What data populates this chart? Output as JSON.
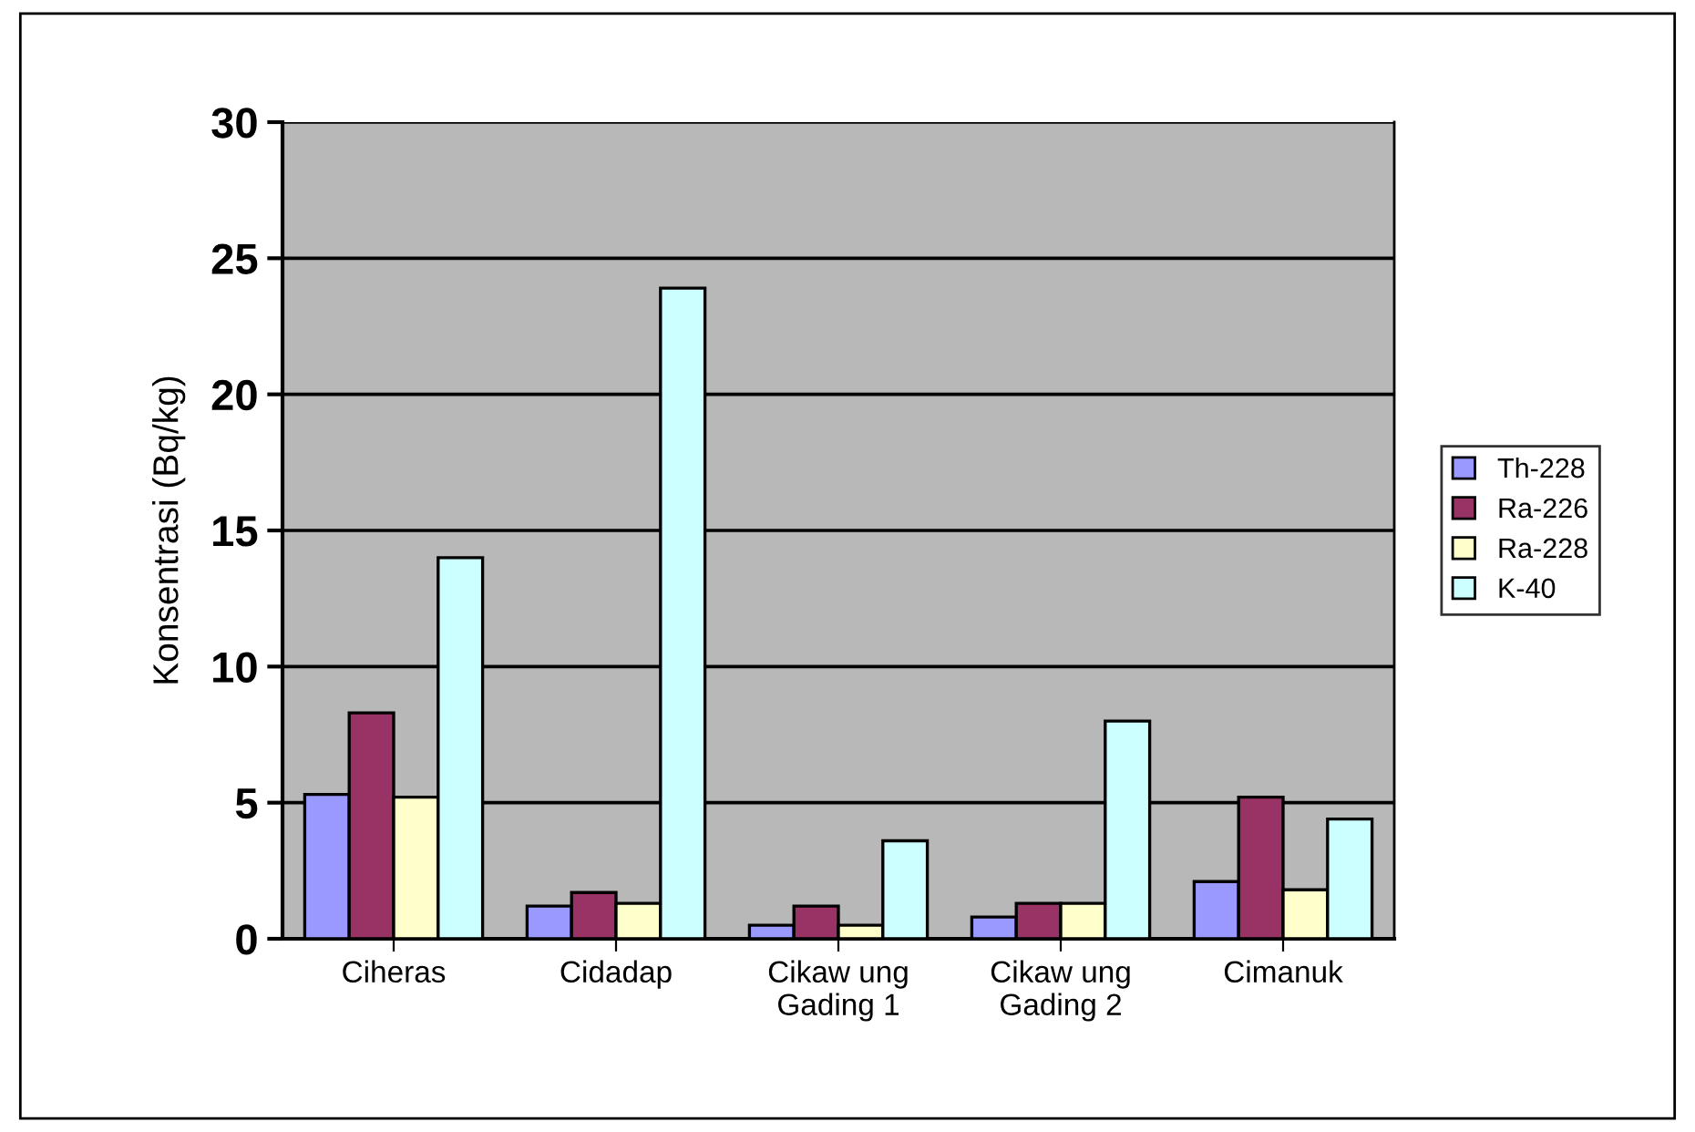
{
  "chart_data": {
    "type": "bar",
    "ylabel": "Konsentrasi (Bq/kg)",
    "categories": [
      "Ciheras",
      "Cidadap",
      "Cikaw ung\nGading 1",
      "Cikaw ung\nGading 2",
      "Cimanuk"
    ],
    "series": [
      {
        "name": "Th-228",
        "color": "#9999ff",
        "values": [
          5.3,
          1.2,
          0.5,
          0.8,
          2.1
        ]
      },
      {
        "name": "Ra-226",
        "color": "#993366",
        "values": [
          8.3,
          1.7,
          1.2,
          1.3,
          5.2
        ]
      },
      {
        "name": "Ra-228",
        "color": "#ffffcc",
        "values": [
          5.2,
          1.3,
          0.5,
          1.3,
          1.8
        ]
      },
      {
        "name": "K-40",
        "color": "#ccffff",
        "values": [
          14,
          23.9,
          3.6,
          8.0,
          4.4
        ]
      }
    ],
    "ylim": [
      0,
      30
    ],
    "yticks": [
      0,
      5,
      10,
      15,
      20,
      25,
      30
    ],
    "grid": "y",
    "legend": "right"
  }
}
